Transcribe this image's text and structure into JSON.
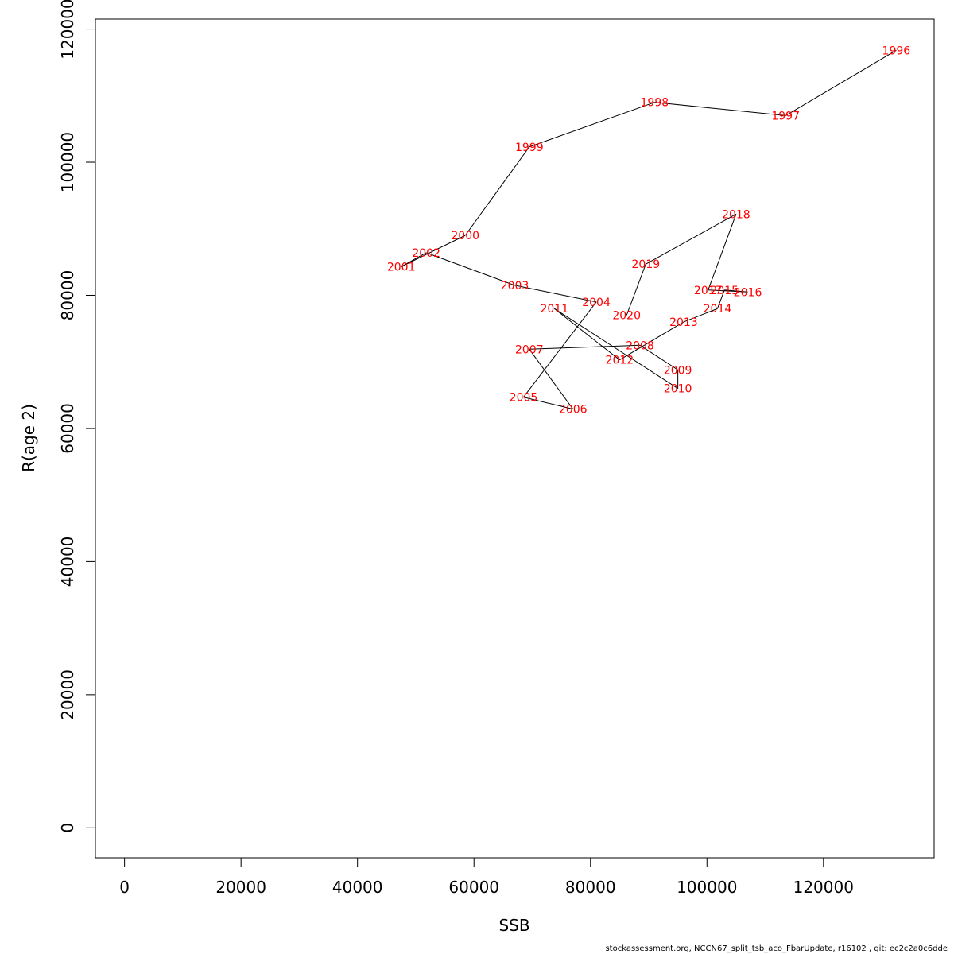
{
  "chart_data": {
    "type": "line",
    "xlabel": "SSB",
    "ylabel": "R(age 2)",
    "xlim": [
      -5000,
      139000
    ],
    "ylim": [
      -4500,
      121500
    ],
    "xticks": [
      0,
      20000,
      40000,
      60000,
      80000,
      100000,
      120000
    ],
    "yticks": [
      0,
      20000,
      40000,
      60000,
      80000,
      100000,
      120000
    ],
    "line_color": "#000000",
    "label_color": "#ff0000",
    "points": [
      {
        "label": "1996",
        "x": 132500,
        "y": 116800
      },
      {
        "label": "1997",
        "x": 113500,
        "y": 107000
      },
      {
        "label": "1998",
        "x": 91000,
        "y": 109000
      },
      {
        "label": "1999",
        "x": 69500,
        "y": 102300
      },
      {
        "label": "2000",
        "x": 58500,
        "y": 89000
      },
      {
        "label": "2001",
        "x": 47500,
        "y": 84300
      },
      {
        "label": "2002",
        "x": 51800,
        "y": 86400
      },
      {
        "label": "2003",
        "x": 67000,
        "y": 81500
      },
      {
        "label": "2004",
        "x": 81000,
        "y": 79000
      },
      {
        "label": "2005",
        "x": 68500,
        "y": 64700
      },
      {
        "label": "2006",
        "x": 77000,
        "y": 62900
      },
      {
        "label": "2007",
        "x": 69500,
        "y": 71900
      },
      {
        "label": "2008",
        "x": 88500,
        "y": 72500
      },
      {
        "label": "2009",
        "x": 95000,
        "y": 68800
      },
      {
        "label": "2010",
        "x": 95000,
        "y": 66000
      },
      {
        "label": "2011",
        "x": 73800,
        "y": 78000
      },
      {
        "label": "2012",
        "x": 85000,
        "y": 70300
      },
      {
        "label": "2013",
        "x": 96000,
        "y": 76000
      },
      {
        "label": "2014",
        "x": 101800,
        "y": 78000
      },
      {
        "label": "2015",
        "x": 103000,
        "y": 80800
      },
      {
        "label": "2016",
        "x": 107000,
        "y": 80500
      },
      {
        "label": "2017",
        "x": 100200,
        "y": 80800
      },
      {
        "label": "2018",
        "x": 105000,
        "y": 92200
      },
      {
        "label": "2019",
        "x": 89500,
        "y": 84700
      },
      {
        "label": "2020",
        "x": 86200,
        "y": 77000
      }
    ]
  },
  "footnote": "stockassessment.org, NCCN67_split_tsb_aco_FbarUpdate, r16102 , git: ec2c2a0c6dde"
}
